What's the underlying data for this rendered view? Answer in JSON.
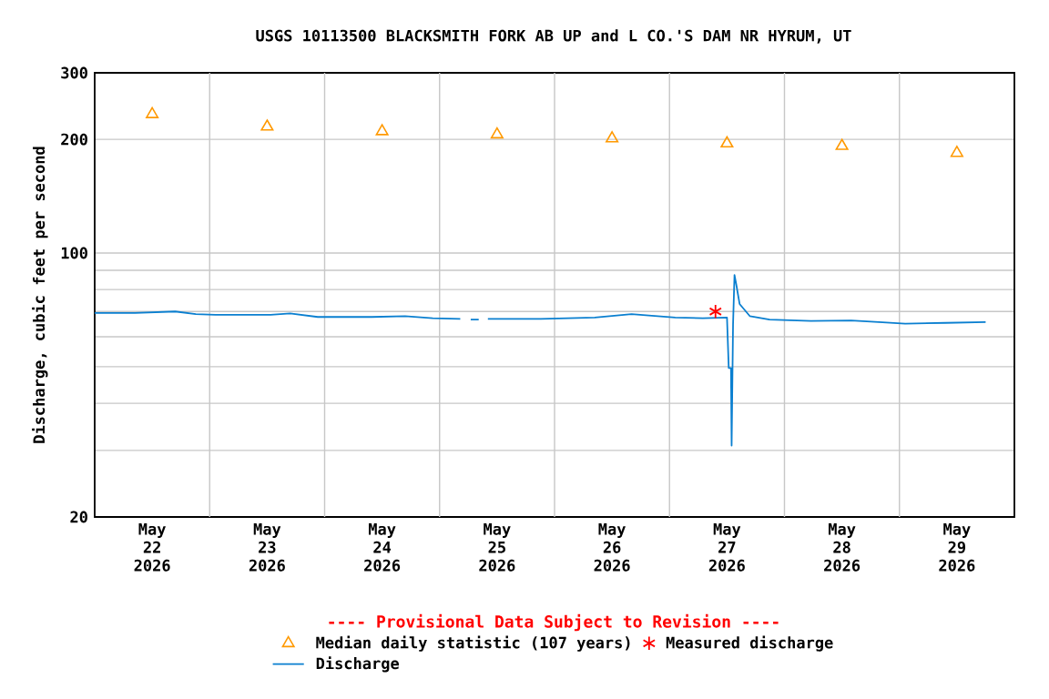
{
  "chart_data": {
    "type": "line",
    "title": "USGS 10113500 BLACKSMITH FORK AB UP and L CO.'S DAM NR HYRUM, UT",
    "ylabel": "Discharge, cubic feet per second",
    "annotations": [
      "---- Provisional Data Subject to Revision ----"
    ],
    "log": "y",
    "grid": true,
    "legend": "bottom",
    "xlim": [
      "2026-05-22T00:00",
      "2026-05-30T00:00"
    ],
    "xticks": [
      {
        "value": "2026-05-22T12:00",
        "label": "May 22 2026"
      },
      {
        "value": "2026-05-23T12:00",
        "label": "May 23 2026"
      },
      {
        "value": "2026-05-24T12:00",
        "label": "May 24 2026"
      },
      {
        "value": "2026-05-25T12:00",
        "label": "May 25 2026"
      },
      {
        "value": "2026-05-26T12:00",
        "label": "May 26 2026"
      },
      {
        "value": "2026-05-27T12:00",
        "label": "May 27 2026"
      },
      {
        "value": "2026-05-28T12:00",
        "label": "May 28 2026"
      },
      {
        "value": "2026-05-29T12:00",
        "label": "May 29 2026"
      },
      {
        "value": "2026-05-23T00:00",
        "label": null
      },
      {
        "value": "2026-05-24T00:00",
        "label": null
      },
      {
        "value": "2026-05-25T00:00",
        "label": null
      },
      {
        "value": "2026-05-26T00:00",
        "label": null
      },
      {
        "value": "2026-05-27T00:00",
        "label": null
      },
      {
        "value": "2026-05-28T00:00",
        "label": null
      },
      {
        "value": "2026-05-29T00:00",
        "label": null
      }
    ],
    "ylim": [
      20,
      300
    ],
    "yticks": [
      20,
      {
        "value": 30,
        "label": null
      },
      {
        "value": 40,
        "label": null
      },
      {
        "value": 50,
        "label": null
      },
      {
        "value": 60,
        "label": null
      },
      {
        "value": 70,
        "label": null
      },
      {
        "value": 80,
        "label": null
      },
      {
        "value": 90,
        "label": null
      },
      100,
      200,
      300
    ],
    "series": [
      {
        "name": "Median daily statistic (107 years)",
        "type": "scatter",
        "marker": "triangle",
        "color": "#ff9900",
        "x": [
          "2026-05-22T12:00",
          "2026-05-23T12:00",
          "2026-05-24T12:00",
          "2026-05-25T12:00",
          "2026-05-26T12:00",
          "2026-05-27T12:00",
          "2026-05-28T12:00",
          "2026-05-29T12:00"
        ],
        "values": [
          233,
          216,
          210,
          206,
          201,
          195,
          192,
          184
        ]
      },
      {
        "name": "Measured discharge",
        "type": "scatter",
        "marker": "cross",
        "color": "#ff0000",
        "x": [
          "2026-05-27T09:36"
        ],
        "values": [
          70
        ]
      },
      {
        "name": "Discharge",
        "marker": "none",
        "color": "#0a7fd0",
        "x": [
          "2026-05-22T00:00",
          "2026-05-22T08:24",
          "2026-05-22T16:48",
          "2026-05-22T21:07",
          "2026-05-23T01:12",
          "2026-05-23T12:43",
          "2026-05-23T16:48",
          "2026-05-23T22:34",
          "2026-05-24T09:50",
          "2026-05-24T16:48",
          "2026-05-24T22:34",
          "2026-05-25T04:19",
          "2026-05-25T05:30",
          "2026-05-25T06:30",
          "2026-05-25T08:10",
          "2026-05-25T09:00",
          "2026-05-25T10:05",
          "2026-05-25T21:07",
          "2026-05-26T08:24",
          "2026-05-26T16:05",
          "2026-05-26T19:41",
          "2026-05-27T01:12",
          "2026-05-27T06:58",
          "2026-05-27T12:00",
          "2026-05-27T12:22",
          "2026-05-27T12:50",
          "2026-05-27T12:58",
          "2026-05-27T13:16",
          "2026-05-27T13:34",
          "2026-05-27T13:55",
          "2026-05-27T14:38",
          "2026-05-27T16:48",
          "2026-05-27T20:53",
          "2026-05-28T05:31",
          "2026-05-28T13:55",
          "2026-05-28T19:41",
          "2026-05-29T01:12",
          "2026-05-29T09:36",
          "2026-05-29T18:00"
        ],
        "values": [
          69.4,
          69.4,
          70.0,
          68.9,
          68.6,
          68.6,
          69.2,
          67.7,
          67.7,
          68.0,
          67.2,
          66.9,
          null,
          66.6,
          66.6,
          null,
          66.9,
          66.9,
          67.5,
          68.9,
          68.3,
          67.5,
          67.2,
          67.5,
          49.6,
          49.6,
          30.9,
          64.8,
          87.4,
          82.8,
          73.3,
          68.0,
          66.6,
          66.1,
          66.3,
          65.6,
          65.0,
          65.3,
          65.6
        ]
      }
    ]
  }
}
